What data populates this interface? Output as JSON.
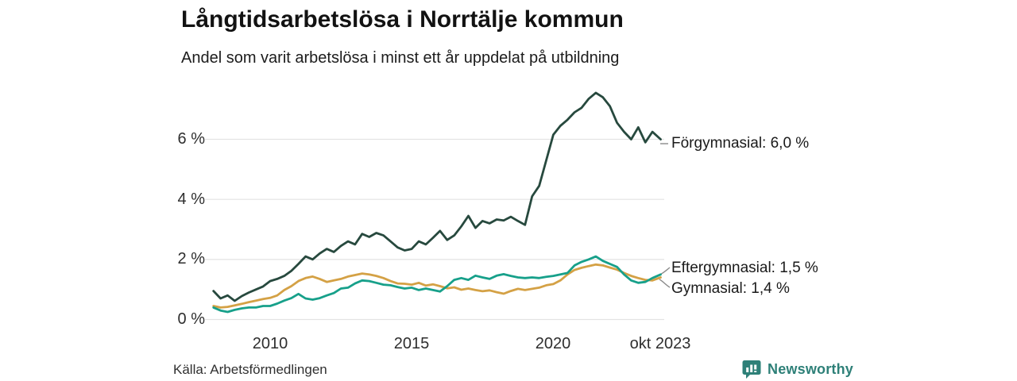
{
  "title": "Långtidsarbetslösa i Norrtälje kommun",
  "subtitle": "Andel som varit arbetslösa i minst ett år uppdelat på utbildning",
  "source": "Källa: Arbetsförmedlingen",
  "brand": {
    "name": "Newsworthy",
    "icon": "bar-chart-speech-bubble-icon",
    "color": "#2E8078"
  },
  "colors": {
    "grid": "#e3e3e3",
    "leader": "#8a8a8a",
    "background": "#ffffff"
  },
  "annotations": [
    {
      "label": "Förgymnasial: 6,0 %"
    },
    {
      "label": "Eftergymnasial: 1,5 %"
    },
    {
      "label": "Gymnasial: 1,4 %"
    }
  ],
  "chart_data": {
    "type": "line",
    "unit": "%",
    "title": "Långtidsarbetslösa i Norrtälje kommun",
    "subtitle": "Andel som varit arbetslösa i minst ett år uppdelat på utbildning",
    "grid": "horizontal",
    "ylim": [
      0,
      7.8
    ],
    "yticks": [
      {
        "value": 0,
        "label": "0 %"
      },
      {
        "value": 2,
        "label": "2 %"
      },
      {
        "value": 4,
        "label": "4 %"
      },
      {
        "value": 6,
        "label": "6 %"
      }
    ],
    "xticks": [
      {
        "year": 2010,
        "label": "2010"
      },
      {
        "year": 2015,
        "label": "2015"
      },
      {
        "year": 2020,
        "label": "2020"
      },
      {
        "year": 2023.79,
        "label": "okt 2023"
      }
    ],
    "x_years": [
      2008,
      2008.25,
      2008.5,
      2008.75,
      2009,
      2009.25,
      2009.5,
      2009.75,
      2010,
      2010.25,
      2010.5,
      2010.75,
      2011,
      2011.25,
      2011.5,
      2011.75,
      2012,
      2012.25,
      2012.5,
      2012.75,
      2013,
      2013.25,
      2013.5,
      2013.75,
      2014,
      2014.25,
      2014.5,
      2014.75,
      2015,
      2015.25,
      2015.5,
      2015.75,
      2016,
      2016.25,
      2016.5,
      2016.75,
      2017,
      2017.25,
      2017.5,
      2017.75,
      2018,
      2018.25,
      2018.5,
      2018.75,
      2019,
      2019.25,
      2019.5,
      2019.75,
      2020,
      2020.25,
      2020.5,
      2020.75,
      2021,
      2021.25,
      2021.5,
      2021.75,
      2022,
      2022.25,
      2022.5,
      2022.75,
      2023,
      2023.25,
      2023.5,
      2023.79
    ],
    "series": [
      {
        "name": "Förgymnasial",
        "color": "#27493E",
        "end_label": "Förgymnasial: 6,0 %",
        "last_value": 6.0,
        "values": [
          0.95,
          0.7,
          0.8,
          0.62,
          0.78,
          0.9,
          1.0,
          1.1,
          1.28,
          1.35,
          1.45,
          1.62,
          1.85,
          2.1,
          2.0,
          2.2,
          2.35,
          2.25,
          2.45,
          2.6,
          2.5,
          2.85,
          2.75,
          2.88,
          2.8,
          2.6,
          2.4,
          2.3,
          2.35,
          2.6,
          2.5,
          2.72,
          2.95,
          2.65,
          2.8,
          3.1,
          3.45,
          3.05,
          3.28,
          3.2,
          3.33,
          3.3,
          3.42,
          3.28,
          3.15,
          4.1,
          4.45,
          5.3,
          6.15,
          6.45,
          6.65,
          6.9,
          7.05,
          7.35,
          7.55,
          7.4,
          7.1,
          6.55,
          6.25,
          6.0,
          6.4,
          5.9,
          6.25,
          6.0
        ]
      },
      {
        "name": "Eftergymnasial",
        "color": "#17A08A",
        "end_label": "Eftergymnasial: 1,5 %",
        "last_value": 1.5,
        "values": [
          0.4,
          0.3,
          0.25,
          0.32,
          0.37,
          0.4,
          0.4,
          0.45,
          0.45,
          0.53,
          0.63,
          0.71,
          0.85,
          0.7,
          0.66,
          0.71,
          0.8,
          0.88,
          1.03,
          1.06,
          1.2,
          1.3,
          1.28,
          1.22,
          1.16,
          1.14,
          1.08,
          1.03,
          1.06,
          0.98,
          1.03,
          0.98,
          0.93,
          1.11,
          1.32,
          1.38,
          1.32,
          1.46,
          1.4,
          1.35,
          1.46,
          1.51,
          1.45,
          1.4,
          1.38,
          1.4,
          1.38,
          1.42,
          1.45,
          1.5,
          1.55,
          1.8,
          1.92,
          2.0,
          2.1,
          1.95,
          1.85,
          1.75,
          1.5,
          1.3,
          1.22,
          1.25,
          1.38,
          1.5
        ]
      },
      {
        "name": "Gymnasial",
        "color": "#D4A145",
        "end_label": "Gymnasial: 1,4 %",
        "last_value": 1.4,
        "values": [
          0.45,
          0.4,
          0.42,
          0.47,
          0.52,
          0.58,
          0.63,
          0.68,
          0.72,
          0.8,
          0.98,
          1.11,
          1.28,
          1.38,
          1.43,
          1.35,
          1.25,
          1.3,
          1.35,
          1.43,
          1.48,
          1.53,
          1.5,
          1.45,
          1.38,
          1.28,
          1.2,
          1.19,
          1.16,
          1.22,
          1.13,
          1.17,
          1.11,
          1.04,
          1.07,
          0.99,
          1.03,
          0.98,
          0.94,
          0.97,
          0.91,
          0.86,
          0.95,
          1.02,
          0.98,
          1.02,
          1.06,
          1.14,
          1.18,
          1.3,
          1.5,
          1.65,
          1.72,
          1.78,
          1.83,
          1.8,
          1.73,
          1.66,
          1.55,
          1.45,
          1.38,
          1.32,
          1.3,
          1.4
        ]
      }
    ]
  }
}
